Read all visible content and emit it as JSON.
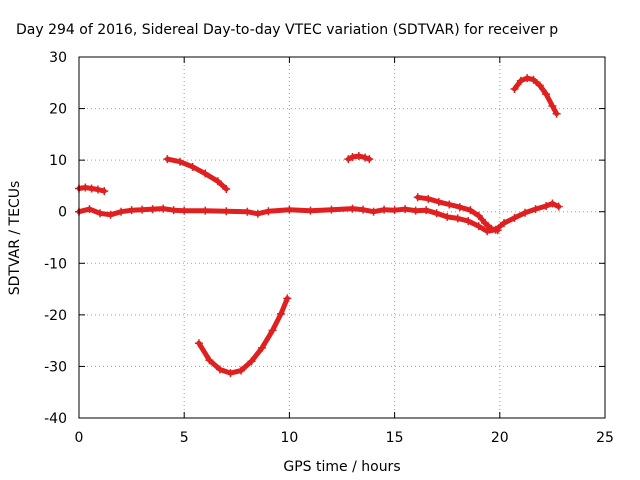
{
  "chart_data": {
    "type": "scatter",
    "title": "Day 294 of 2016, Sidereal Day-to-day VTEC variation (SDTVAR) for receiver p",
    "xlabel": "GPS time / hours",
    "ylabel": "SDTVAR / TECUs",
    "xlim": [
      0,
      25
    ],
    "ylim": [
      -40,
      30
    ],
    "x_ticks": [
      0,
      5,
      10,
      15,
      20,
      25
    ],
    "y_ticks": [
      -40,
      -30,
      -20,
      -10,
      0,
      10,
      20,
      30
    ],
    "x_tick_labels": [
      "0",
      "5",
      "10",
      "15",
      "20",
      "25"
    ],
    "y_tick_labels": [
      "-40",
      "-30",
      "-20",
      "-10",
      "0",
      "10",
      "20",
      "30"
    ],
    "grid": true,
    "legend": "none",
    "color": "#e02020",
    "series": [
      {
        "points": [
          [
            0.0,
            4.5
          ],
          [
            0.3,
            4.7
          ],
          [
            0.6,
            4.5
          ],
          [
            0.9,
            4.3
          ],
          [
            1.2,
            4.0
          ]
        ]
      },
      {
        "points": [
          [
            4.2,
            10.2
          ],
          [
            4.8,
            9.7
          ],
          [
            5.4,
            8.7
          ],
          [
            6.0,
            7.4
          ],
          [
            6.6,
            5.9
          ],
          [
            7.0,
            4.4
          ]
        ]
      },
      {
        "points": [
          [
            12.8,
            10.2
          ],
          [
            13.0,
            10.6
          ],
          [
            13.3,
            10.8
          ],
          [
            13.6,
            10.5
          ],
          [
            13.8,
            10.2
          ]
        ]
      },
      {
        "points": [
          [
            20.7,
            23.8
          ],
          [
            21.0,
            25.4
          ],
          [
            21.3,
            25.9
          ],
          [
            21.6,
            25.6
          ],
          [
            21.9,
            24.5
          ],
          [
            22.2,
            22.8
          ],
          [
            22.5,
            20.5
          ],
          [
            22.7,
            19.0
          ]
        ]
      },
      {
        "points": [
          [
            5.7,
            -25.5
          ],
          [
            6.2,
            -28.8
          ],
          [
            6.7,
            -30.6
          ],
          [
            7.2,
            -31.3
          ],
          [
            7.7,
            -30.8
          ],
          [
            8.2,
            -29.0
          ],
          [
            8.7,
            -26.4
          ],
          [
            9.2,
            -23.0
          ],
          [
            9.6,
            -19.8
          ],
          [
            9.9,
            -16.8
          ]
        ]
      },
      {
        "points": [
          [
            0.0,
            0.0
          ],
          [
            0.5,
            0.5
          ],
          [
            1.0,
            -0.3
          ],
          [
            1.5,
            -0.6
          ],
          [
            2.0,
            0.0
          ],
          [
            2.5,
            0.3
          ],
          [
            3.0,
            0.4
          ],
          [
            3.5,
            0.5
          ],
          [
            4.0,
            0.6
          ],
          [
            4.5,
            0.3
          ],
          [
            5.0,
            0.2
          ],
          [
            6.0,
            0.2
          ],
          [
            7.0,
            0.1
          ],
          [
            8.0,
            0.0
          ],
          [
            8.5,
            -0.4
          ],
          [
            9.0,
            0.1
          ],
          [
            10.0,
            0.4
          ],
          [
            11.0,
            0.2
          ],
          [
            12.0,
            0.4
          ],
          [
            13.0,
            0.6
          ],
          [
            13.5,
            0.4
          ],
          [
            14.0,
            0.0
          ],
          [
            14.5,
            0.4
          ],
          [
            15.0,
            0.3
          ],
          [
            15.5,
            0.5
          ],
          [
            16.0,
            0.2
          ],
          [
            16.5,
            0.3
          ],
          [
            17.0,
            -0.3
          ],
          [
            17.5,
            -1.0
          ],
          [
            18.0,
            -1.3
          ],
          [
            18.5,
            -1.8
          ],
          [
            19.0,
            -2.8
          ],
          [
            19.4,
            -3.8
          ],
          [
            19.8,
            -3.5
          ],
          [
            20.2,
            -2.2
          ],
          [
            20.7,
            -1.2
          ],
          [
            21.2,
            -0.2
          ],
          [
            21.7,
            0.5
          ],
          [
            22.2,
            1.1
          ],
          [
            22.5,
            1.6
          ],
          [
            22.8,
            1.0
          ]
        ]
      },
      {
        "points": [
          [
            16.1,
            2.8
          ],
          [
            16.6,
            2.5
          ],
          [
            17.1,
            1.9
          ],
          [
            17.6,
            1.4
          ],
          [
            18.1,
            0.9
          ],
          [
            18.6,
            0.3
          ],
          [
            19.0,
            -0.8
          ],
          [
            19.3,
            -2.2
          ],
          [
            19.6,
            -3.3
          ],
          [
            19.9,
            -3.6
          ]
        ]
      }
    ]
  }
}
